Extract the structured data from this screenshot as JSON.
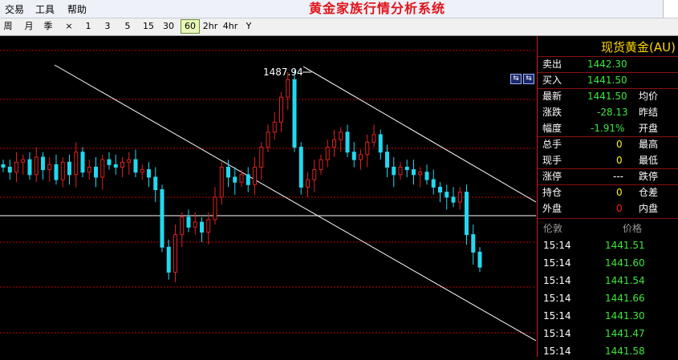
{
  "menu": {
    "items": [
      "交易",
      "工具",
      "帮助"
    ],
    "title": "黄金家族行情分析系统"
  },
  "toolbar": {
    "periods": [
      "周",
      "月",
      "季",
      "×",
      "1",
      "3",
      "5",
      "15",
      "30",
      "60",
      "2hr",
      "4hr",
      "Y"
    ],
    "active_period": "60"
  },
  "chart": {
    "high_label": "1487.94",
    "colors": {
      "up": "#e02020",
      "down": "#22d8f0",
      "trendline": "#ffffff",
      "gridline": "#c00000"
    }
  },
  "chart_data": {
    "type": "candlestick",
    "annotations": [
      {
        "text": "1487.94",
        "note": "period high marker"
      }
    ],
    "ohlc_close_series": [
      1452,
      1450,
      1454,
      1455,
      1449,
      1456,
      1451,
      1453,
      1447,
      1454,
      1449,
      1458,
      1450,
      1452,
      1448,
      1455,
      1453,
      1452,
      1454,
      1455,
      1450,
      1451,
      1448,
      1443,
      1420,
      1410,
      1425,
      1432,
      1428,
      1430,
      1426,
      1431,
      1440,
      1452,
      1448,
      1446,
      1449,
      1445,
      1452,
      1460,
      1466,
      1470,
      1480,
      1487,
      1460,
      1444,
      1447,
      1451,
      1455,
      1460,
      1463,
      1466,
      1458,
      1455,
      1457,
      1462,
      1465,
      1458,
      1452,
      1449,
      1452,
      1451,
      1449,
      1450,
      1447,
      1444,
      1442,
      1440,
      1438,
      1442,
      1425,
      1418,
      1412
    ]
  },
  "quote": {
    "title": "现货黄金(AU)",
    "rows": [
      {
        "label": "卖出",
        "value": "1442.30",
        "label2": ""
      },
      {
        "label": "买入",
        "value": "1441.50",
        "label2": ""
      },
      {
        "label": "最新",
        "value": "1441.50",
        "label2": "均价"
      },
      {
        "label": "涨跌",
        "value": "-28.13",
        "label2": "昨结"
      },
      {
        "label": "幅度",
        "value": "-1.91%",
        "label2": "开盘"
      },
      {
        "label": "总手",
        "value": "0",
        "label2": "最高"
      },
      {
        "label": "现手",
        "value": "0",
        "label2": "最低"
      },
      {
        "label": "涨停",
        "value": "---",
        "label2": "跌停"
      },
      {
        "label": "持仓",
        "value": "0",
        "label2": "仓差"
      },
      {
        "label": "外盘",
        "value": "0",
        "label2": "内盘"
      }
    ],
    "trades_header": {
      "time": "伦敦",
      "price": "价格"
    },
    "trades": [
      {
        "time": "15:14",
        "price": "1441.51"
      },
      {
        "time": "15:14",
        "price": "1441.60"
      },
      {
        "time": "15:14",
        "price": "1441.54"
      },
      {
        "time": "15:14",
        "price": "1441.66"
      },
      {
        "time": "15:14",
        "price": "1441.30"
      },
      {
        "time": "15:14",
        "price": "1441.47"
      },
      {
        "time": "15:14",
        "price": "1441.58"
      }
    ]
  }
}
